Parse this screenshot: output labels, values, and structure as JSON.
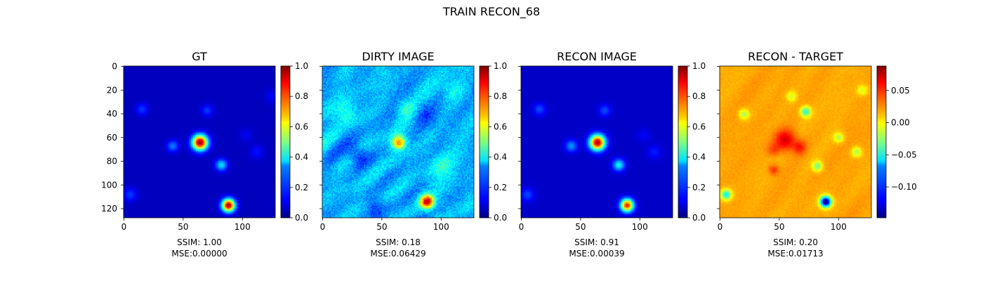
{
  "figure": {
    "title": "TRAIN RECON_68"
  },
  "colormap": "jet",
  "colors": {
    "background": "#ffffff",
    "axes": "#000000",
    "jet_low": "#00007f",
    "jet_mid": "#7fff7f",
    "jet_high": "#7f0000"
  },
  "chart_data": [
    {
      "type": "heatmap",
      "title": "GT",
      "image_size": [
        128,
        128
      ],
      "xticks": [
        0,
        50,
        100
      ],
      "yticks": [
        0,
        20,
        40,
        60,
        80,
        100,
        120
      ],
      "show_yticklabels": true,
      "colorbar": {
        "ticks": [
          "0.0",
          "0.2",
          "0.4",
          "0.6",
          "0.8",
          "1.0"
        ],
        "range": [
          0.0,
          1.0
        ]
      },
      "caption": {
        "ssim": "SSIM: 1.00",
        "mse": "MSE:0.00000"
      },
      "background_level": 0.06,
      "noise": 0.0,
      "blobs": [
        {
          "x": 64,
          "y": 64,
          "sigma": 4.5,
          "amp": 0.92
        },
        {
          "x": 88,
          "y": 117,
          "sigma": 3.8,
          "amp": 0.9
        },
        {
          "x": 82,
          "y": 83,
          "sigma": 3.5,
          "amp": 0.28
        },
        {
          "x": 41,
          "y": 67,
          "sigma": 3.5,
          "amp": 0.18
        },
        {
          "x": 15,
          "y": 36,
          "sigma": 3.5,
          "amp": 0.12
        },
        {
          "x": 70,
          "y": 37,
          "sigma": 3.5,
          "amp": 0.12
        },
        {
          "x": 5,
          "y": 108,
          "sigma": 4,
          "amp": 0.12
        },
        {
          "x": 112,
          "y": 72,
          "sigma": 4,
          "amp": 0.08
        },
        {
          "x": 103,
          "y": 58,
          "sigma": 4,
          "amp": 0.05
        },
        {
          "x": 125,
          "y": 25,
          "sigma": 4,
          "amp": 0.06
        }
      ]
    },
    {
      "type": "heatmap",
      "title": "DIRTY IMAGE",
      "image_size": [
        128,
        128
      ],
      "xticks": [
        0,
        50,
        100
      ],
      "yticks": [
        0,
        20,
        40,
        60,
        80,
        100,
        120
      ],
      "show_yticklabels": false,
      "colorbar": {
        "ticks": [
          "0.0",
          "0.2",
          "0.4",
          "0.6",
          "0.8",
          "1.0"
        ],
        "range": [
          0.0,
          1.0
        ]
      },
      "caption": {
        "ssim": "SSIM: 0.18",
        "mse": "MSE:0.06429"
      },
      "background_level": 0.3,
      "noise": 0.06,
      "blobs": [
        {
          "x": 64,
          "y": 64,
          "sigma": 4,
          "amp": 0.45
        },
        {
          "x": 88,
          "y": 114,
          "sigma": 4,
          "amp": 0.6
        },
        {
          "x": 30,
          "y": 75,
          "sigma": 6,
          "amp": -0.15
        },
        {
          "x": 85,
          "y": 40,
          "sigma": 7,
          "amp": -0.1
        },
        {
          "x": 70,
          "y": 35,
          "sigma": 5,
          "amp": 0.12
        },
        {
          "x": 100,
          "y": 85,
          "sigma": 8,
          "amp": 0.1
        },
        {
          "x": 20,
          "y": 40,
          "sigma": 7,
          "amp": 0.1
        },
        {
          "x": 110,
          "y": 20,
          "sigma": 6,
          "amp": 0.08
        },
        {
          "x": 45,
          "y": 120,
          "sigma": 6,
          "amp": -0.1
        }
      ]
    },
    {
      "type": "heatmap",
      "title": "RECON IMAGE",
      "image_size": [
        128,
        128
      ],
      "xticks": [
        0,
        50,
        100
      ],
      "yticks": [
        0,
        20,
        40,
        60,
        80,
        100,
        120
      ],
      "show_yticklabels": false,
      "colorbar": {
        "ticks": [
          "0.0",
          "0.2",
          "0.4",
          "0.6",
          "0.8",
          "1.0"
        ],
        "range": [
          0.0,
          1.0
        ]
      },
      "caption": {
        "ssim": "SSIM: 0.91",
        "mse": "MSE:0.00039"
      },
      "background_level": 0.07,
      "noise": 0.0,
      "blobs": [
        {
          "x": 64,
          "y": 64,
          "sigma": 4.5,
          "amp": 0.88
        },
        {
          "x": 89,
          "y": 117,
          "sigma": 3.8,
          "amp": 0.78
        },
        {
          "x": 82,
          "y": 83,
          "sigma": 3.5,
          "amp": 0.3
        },
        {
          "x": 42,
          "y": 67,
          "sigma": 3.5,
          "amp": 0.2
        },
        {
          "x": 15,
          "y": 36,
          "sigma": 3.5,
          "amp": 0.13
        },
        {
          "x": 70,
          "y": 37,
          "sigma": 3.5,
          "amp": 0.13
        },
        {
          "x": 5,
          "y": 108,
          "sigma": 4,
          "amp": 0.12
        },
        {
          "x": 112,
          "y": 72,
          "sigma": 4,
          "amp": 0.08
        },
        {
          "x": 103,
          "y": 58,
          "sigma": 4,
          "amp": 0.05
        }
      ]
    },
    {
      "type": "heatmap",
      "title": "RECON - TARGET",
      "image_size": [
        128,
        128
      ],
      "xticks": [
        0,
        50,
        100
      ],
      "yticks": [
        0,
        20,
        40,
        60,
        80,
        100,
        120
      ],
      "show_yticklabels": false,
      "colorbar": {
        "ticks": [
          "0.05",
          "0.00",
          "−0.05",
          "−0.10"
        ],
        "tick_values": [
          0.05,
          0.0,
          -0.05,
          -0.1
        ],
        "range": [
          -0.148,
          0.088
        ]
      },
      "caption": {
        "ssim": "SSIM: 0.20",
        "mse": "MSE:0.01713"
      },
      "background_level": 0.02,
      "noise": 0.004,
      "blobs": [
        {
          "x": 55,
          "y": 62,
          "sigma": 6,
          "amp": 0.05
        },
        {
          "x": 67,
          "y": 68,
          "sigma": 4,
          "amp": 0.03
        },
        {
          "x": 45,
          "y": 70,
          "sigma": 4,
          "amp": 0.02
        },
        {
          "x": 45,
          "y": 87,
          "sigma": 3,
          "amp": 0.03
        },
        {
          "x": 89,
          "y": 114,
          "sigma": 3.2,
          "amp": -0.17
        },
        {
          "x": 72,
          "y": 38,
          "sigma": 3,
          "amp": -0.07
        },
        {
          "x": 5,
          "y": 108,
          "sigma": 3,
          "amp": -0.08
        },
        {
          "x": 82,
          "y": 84,
          "sigma": 3,
          "amp": -0.05
        },
        {
          "x": 20,
          "y": 40,
          "sigma": 3,
          "amp": -0.04
        },
        {
          "x": 100,
          "y": 60,
          "sigma": 3,
          "amp": -0.04
        },
        {
          "x": 115,
          "y": 72,
          "sigma": 3,
          "amp": -0.04
        },
        {
          "x": 60,
          "y": 25,
          "sigma": 3,
          "amp": -0.03
        },
        {
          "x": 120,
          "y": 20,
          "sigma": 3,
          "amp": -0.03
        }
      ]
    }
  ]
}
